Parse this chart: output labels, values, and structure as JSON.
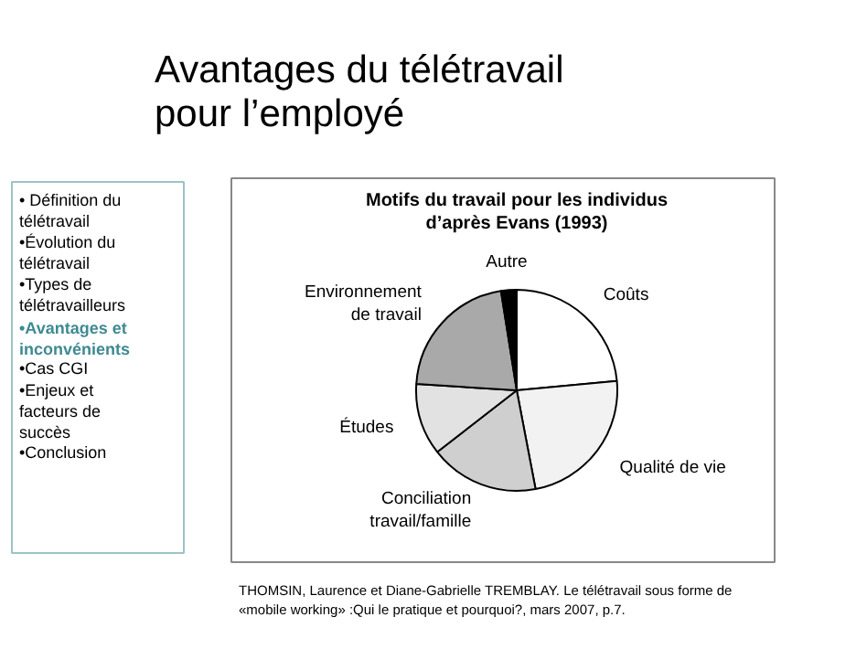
{
  "chart_data": {
    "type": "pie",
    "title": "Motifs du travail pour les individus\nd’après Evans (1993)",
    "categories": [
      "Coûts",
      "Qualité de vie",
      "Conciliation\ntravail/famille",
      "Études",
      "Environnement\nde travail",
      "Autre"
    ],
    "values": [
      23.5,
      23.5,
      17.5,
      11.5,
      21.5,
      2.5
    ],
    "colors": [
      "#ffffff",
      "#f2f2f2",
      "#cfcfcf",
      "#e2e2e2",
      "#a9a9a9",
      "#000000"
    ],
    "annotations": [
      "Avantages du télétravail\npour l’employé",
      "• Définition du\ntélétravail",
      "•Évolution du\ntélétravail",
      "•Types de\ntélétravailleurs",
      "•Avantages et\ninconvénients",
      "•Cas CGI",
      "•Enjeux et\nfacteurs de\nsuccès",
      "•Conclusion",
      "THOMSIN, Laurence et Diane-Gabrielle TREMBLAY. Le télétravail sous forme de\n«mobile working» :Qui le pratique et pourquoi?, mars 2007, p.7."
    ]
  }
}
